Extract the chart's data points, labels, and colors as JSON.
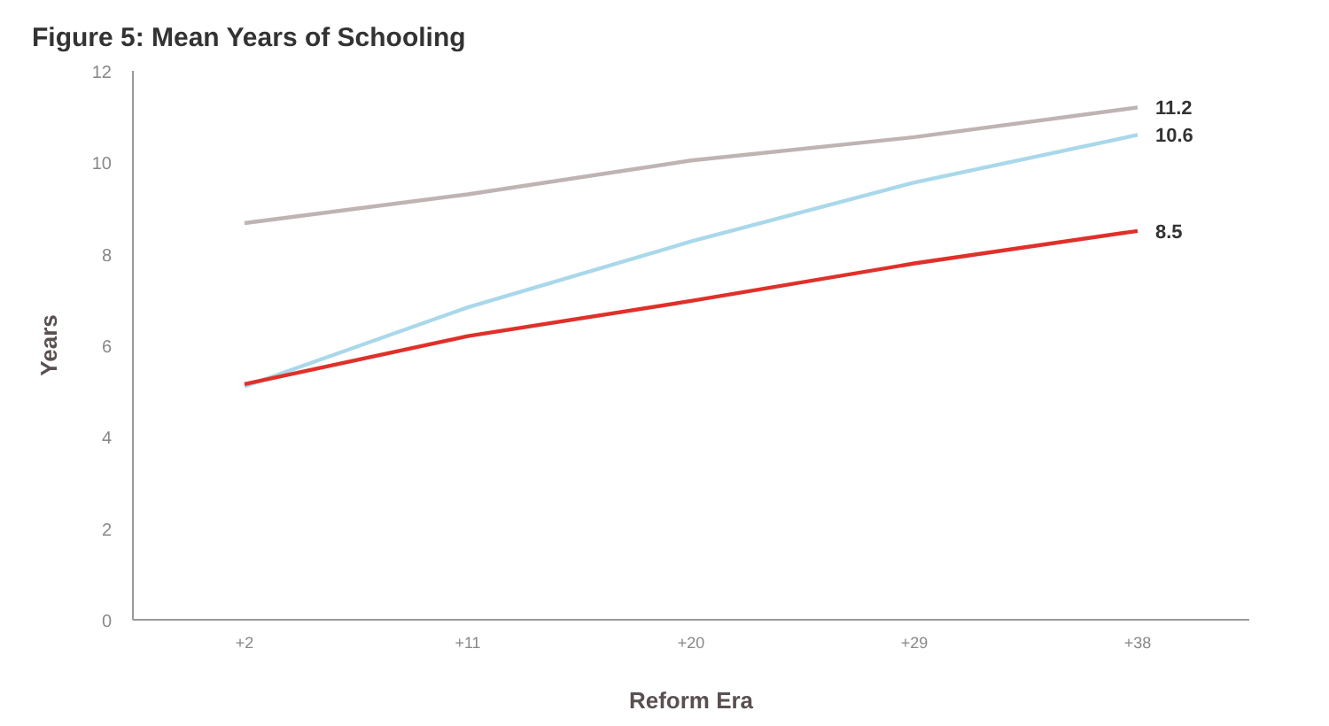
{
  "chart_data": {
    "type": "line",
    "title": "Figure 5: Mean Years of Schooling",
    "xlabel": "Reform Era",
    "ylabel": "Years",
    "categories": [
      "+2",
      "+11",
      "+20",
      "+29",
      "+38"
    ],
    "series": [
      {
        "color": "#bfb3b3",
        "values": [
          8.67,
          9.3,
          10.04,
          10.55,
          11.2
        ],
        "value_labels": [
          null,
          null,
          null,
          null,
          "11.2"
        ]
      },
      {
        "color": "#a9d8ea",
        "values": [
          5.1,
          6.83,
          8.27,
          9.56,
          10.6
        ],
        "value_labels": [
          null,
          null,
          null,
          null,
          "10.6"
        ]
      },
      {
        "color": "#e0302a",
        "values": [
          5.15,
          6.2,
          6.97,
          7.79,
          8.5
        ],
        "value_labels": [
          null,
          null,
          null,
          null,
          "8.5"
        ]
      }
    ],
    "ylim": [
      0,
      12
    ],
    "yticks": [
      0,
      2,
      4,
      6,
      8,
      10,
      12
    ],
    "grid": false,
    "marker": "none",
    "line_style": "solid"
  }
}
